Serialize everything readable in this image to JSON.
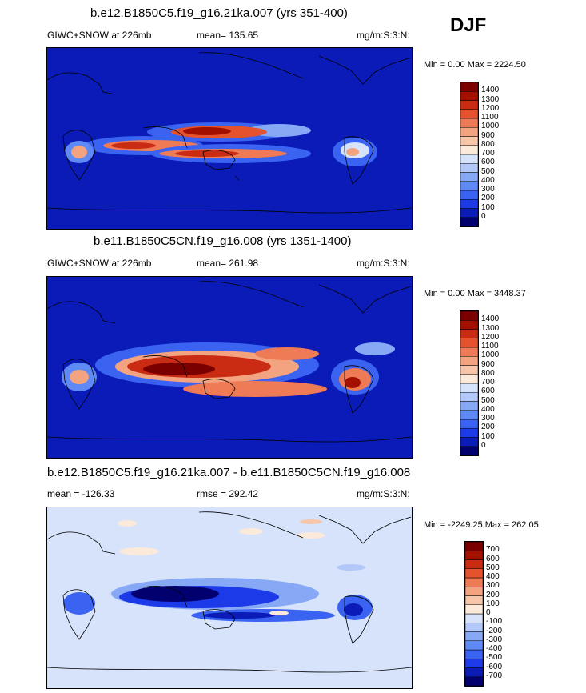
{
  "season": "DJF",
  "colors": {
    "abs_levels": [
      "#02006e",
      "#0a1bb8",
      "#1d3ae8",
      "#3b63f2",
      "#5f89f5",
      "#86a8f5",
      "#b2c8f8",
      "#d6e3fb",
      "#fbe9da",
      "#f7c6a9",
      "#f3a37f",
      "#ef7a56",
      "#e4522e",
      "#c92b13",
      "#a31000",
      "#7a0000"
    ],
    "diff_levels": [
      "#02006e",
      "#0a1bb8",
      "#1d3ae8",
      "#3b63f2",
      "#5f89f5",
      "#86a8f5",
      "#b2c8f8",
      "#d6e3fb",
      "#fbe9da",
      "#f7c6a9",
      "#f3a37f",
      "#ef7a56",
      "#e4522e",
      "#c92b13",
      "#a31000",
      "#7a0000"
    ]
  },
  "panels": [
    {
      "title": "b.e12.B1850C5.f19_g16.21ka.007 (yrs 351-400)",
      "variable": "GIWC+SNOW at 226mb",
      "stat": "mean= 135.65",
      "units": "mg/m:S:3:N:",
      "minmax": "Min =   0.00 Max = 2224.50"
    },
    {
      "title": "b.e11.B1850C5CN.f19_g16.008 (yrs 1351-1400)",
      "variable": "GIWC+SNOW at 226mb",
      "stat": "mean= 261.98",
      "units": "mg/m:S:3:N:",
      "minmax": "Min =   0.00 Max = 3448.37"
    },
    {
      "title": "b.e12.B1850C5.f19_g16.21ka.007 - b.e11.B1850C5CN.f19_g16.008",
      "variable": "mean = -126.33",
      "stat": "rmse = 292.42",
      "units": "mg/m:S:3:N:",
      "minmax": "Min = -2249.25 Max = 262.05"
    }
  ],
  "chart_data": [
    {
      "type": "heatmap",
      "title": "b.e12.B1850C5.f19_g16.21ka.007 (yrs 351-400)",
      "field": "GIWC+SNOW at 226mb",
      "mean": 135.65,
      "min": 0.0,
      "max": 2224.5,
      "units": "mg/m:S:3:N:",
      "colorbar_labels": [
        "0",
        "100",
        "200",
        "300",
        "400",
        "500",
        "600",
        "700",
        "800",
        "900",
        "1000",
        "1100",
        "1200",
        "1300",
        "1400"
      ]
    },
    {
      "type": "heatmap",
      "title": "b.e11.B1850C5CN.f19_g16.008 (yrs 1351-1400)",
      "field": "GIWC+SNOW at 226mb",
      "mean": 261.98,
      "min": 0.0,
      "max": 3448.37,
      "units": "mg/m:S:3:N:",
      "colorbar_labels": [
        "0",
        "100",
        "200",
        "300",
        "400",
        "500",
        "600",
        "700",
        "800",
        "900",
        "1000",
        "1100",
        "1200",
        "1300",
        "1400"
      ]
    },
    {
      "type": "heatmap",
      "title": "b.e12.B1850C5.f19_g16.21ka.007 - b.e11.B1850C5CN.f19_g16.008",
      "mean": -126.33,
      "rmse": 292.42,
      "min": -2249.25,
      "max": 262.05,
      "units": "mg/m:S:3:N:",
      "colorbar_labels": [
        "-700",
        "-600",
        "-500",
        "-400",
        "-300",
        "-200",
        "-100",
        "0",
        "100",
        "200",
        "300",
        "400",
        "500",
        "600",
        "700"
      ]
    }
  ]
}
